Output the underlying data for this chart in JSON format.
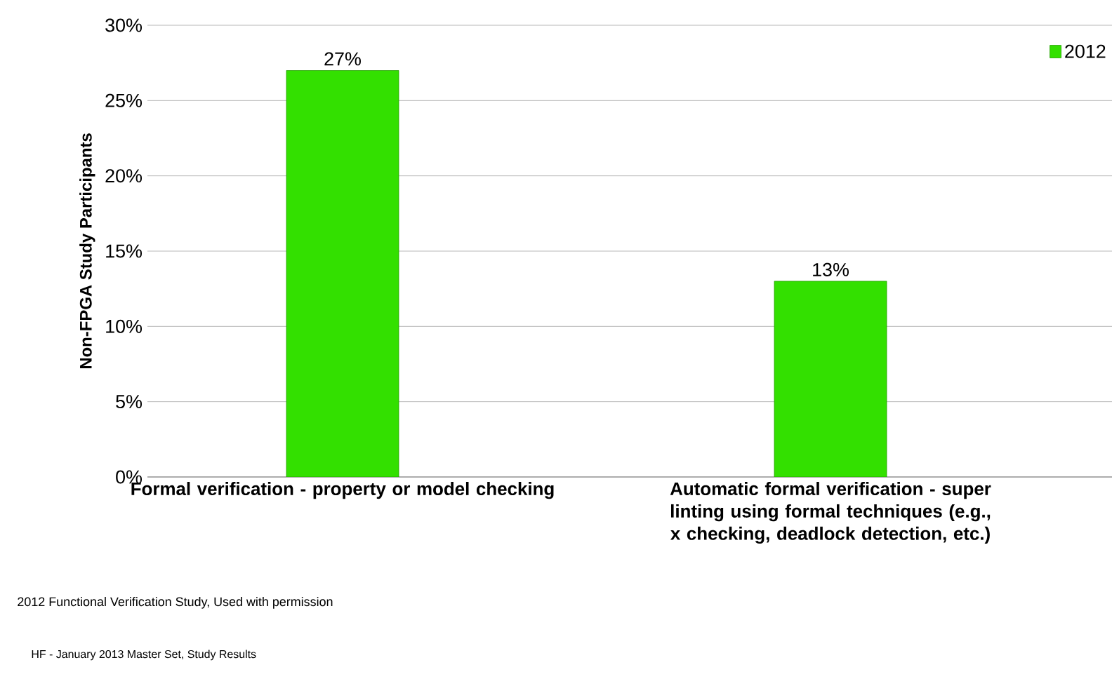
{
  "chart_data": {
    "type": "bar",
    "ylabel": "Non-FPGA Study Participants",
    "categories": [
      "Formal verification - property or model checking",
      "Automatic formal verification - super linting using formal techniques (e.g., x checking, deadlock detection, etc.)"
    ],
    "series": [
      {
        "name": "2012",
        "color": "#33e000",
        "values": [
          27,
          13
        ],
        "value_labels": [
          "27%",
          "13%"
        ]
      }
    ],
    "ylim": [
      0,
      30
    ],
    "yticks": [
      {
        "value": 0,
        "label": "0%"
      },
      {
        "value": 5,
        "label": "5%"
      },
      {
        "value": 10,
        "label": "10%"
      },
      {
        "value": 15,
        "label": "15%"
      },
      {
        "value": 20,
        "label": "20%"
      },
      {
        "value": 25,
        "label": "25%"
      },
      {
        "value": 30,
        "label": "30%"
      }
    ],
    "grid": "y",
    "legend": "top right",
    "annotations": [
      "2012 Functional Verification Study,    Used with permission",
      "HF - January 2013 Master Set, Study Results"
    ]
  }
}
